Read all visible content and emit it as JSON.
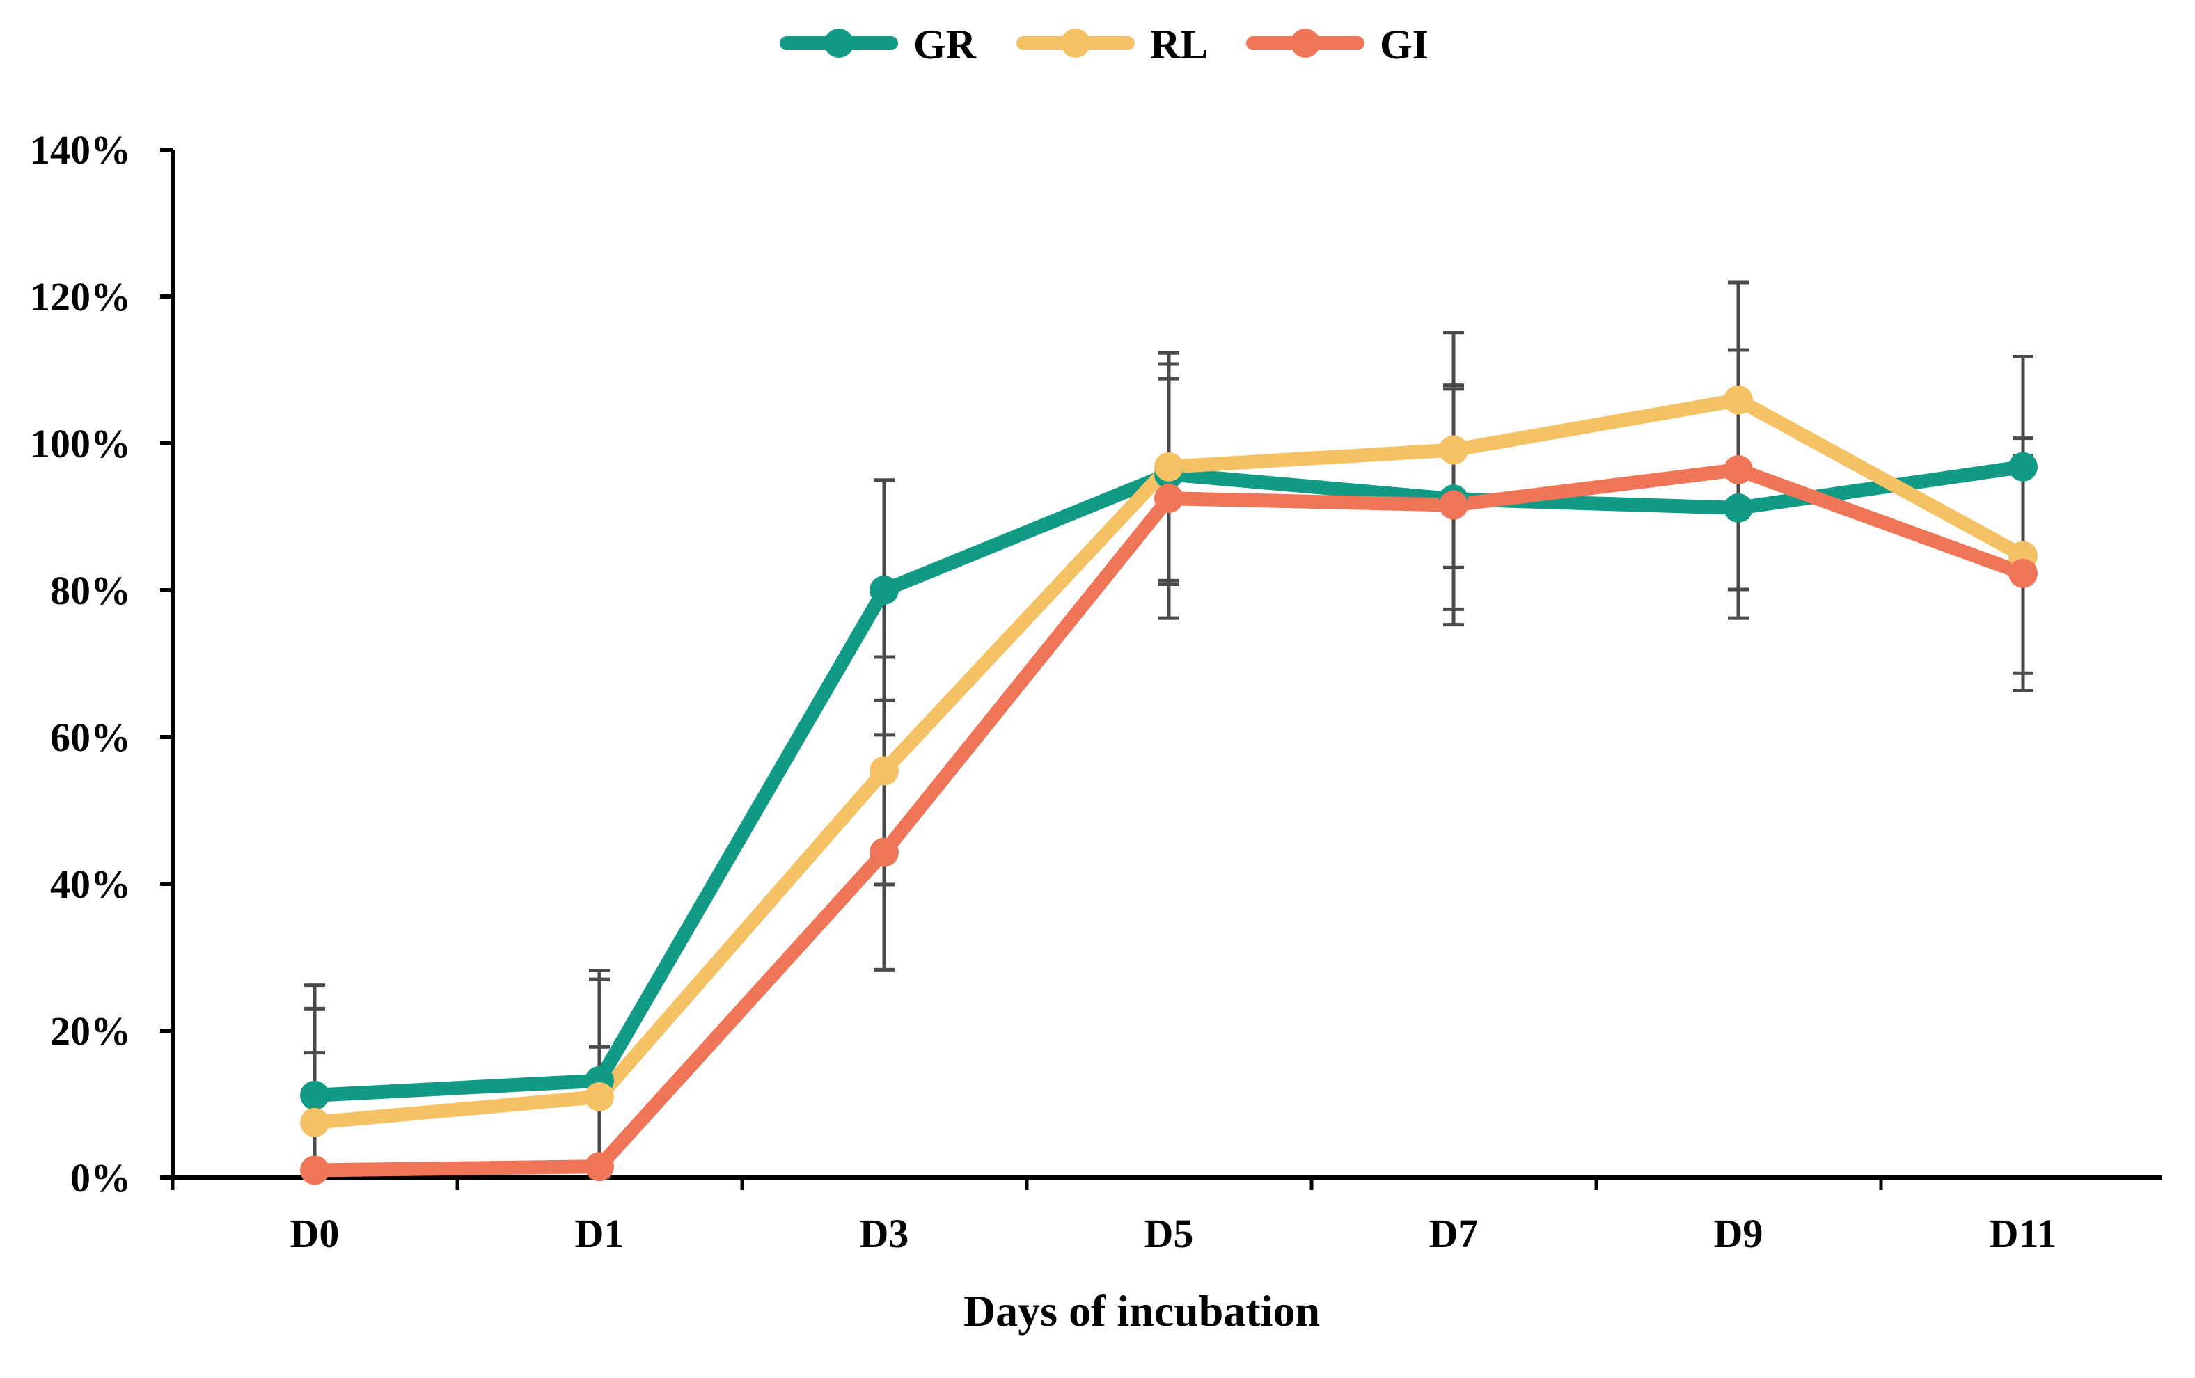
{
  "chart_data": {
    "type": "line",
    "title": "",
    "xlabel": "Days of incubation",
    "ylabel": "",
    "categories": [
      "D0",
      "D1",
      "D3",
      "D5",
      "D7",
      "D9",
      "D11"
    ],
    "ylim": [
      0,
      140
    ],
    "yticks": [
      0,
      20,
      40,
      60,
      80,
      100,
      120,
      140
    ],
    "ytick_labels": [
      "0%",
      "20%",
      "40%",
      "60%",
      "80%",
      "100%",
      "120%",
      "140%"
    ],
    "grid": false,
    "legend": "top-center",
    "series": [
      {
        "name": "GR",
        "color": "#119b86",
        "values": [
          11.2,
          13.2,
          80.0,
          95.8,
          92.4,
          91.2,
          96.8
        ],
        "error": [
          15.0,
          15.0,
          15.0,
          15.0,
          15.0,
          15.0,
          15.0
        ]
      },
      {
        "name": "RL",
        "color": "#f5c165",
        "values": [
          7.5,
          11.0,
          55.4,
          96.8,
          99.1,
          105.9,
          84.7
        ],
        "error": [
          15.5,
          16.0,
          15.5,
          15.5,
          16.0,
          16.0,
          16.0
        ]
      },
      {
        "name": "GI",
        "color": "#ee7557",
        "values": [
          1.0,
          1.5,
          44.3,
          92.5,
          91.6,
          96.4,
          82.3
        ],
        "error": [
          16.0,
          16.3,
          16.0,
          16.3,
          16.3,
          16.3,
          16.0
        ]
      }
    ]
  }
}
